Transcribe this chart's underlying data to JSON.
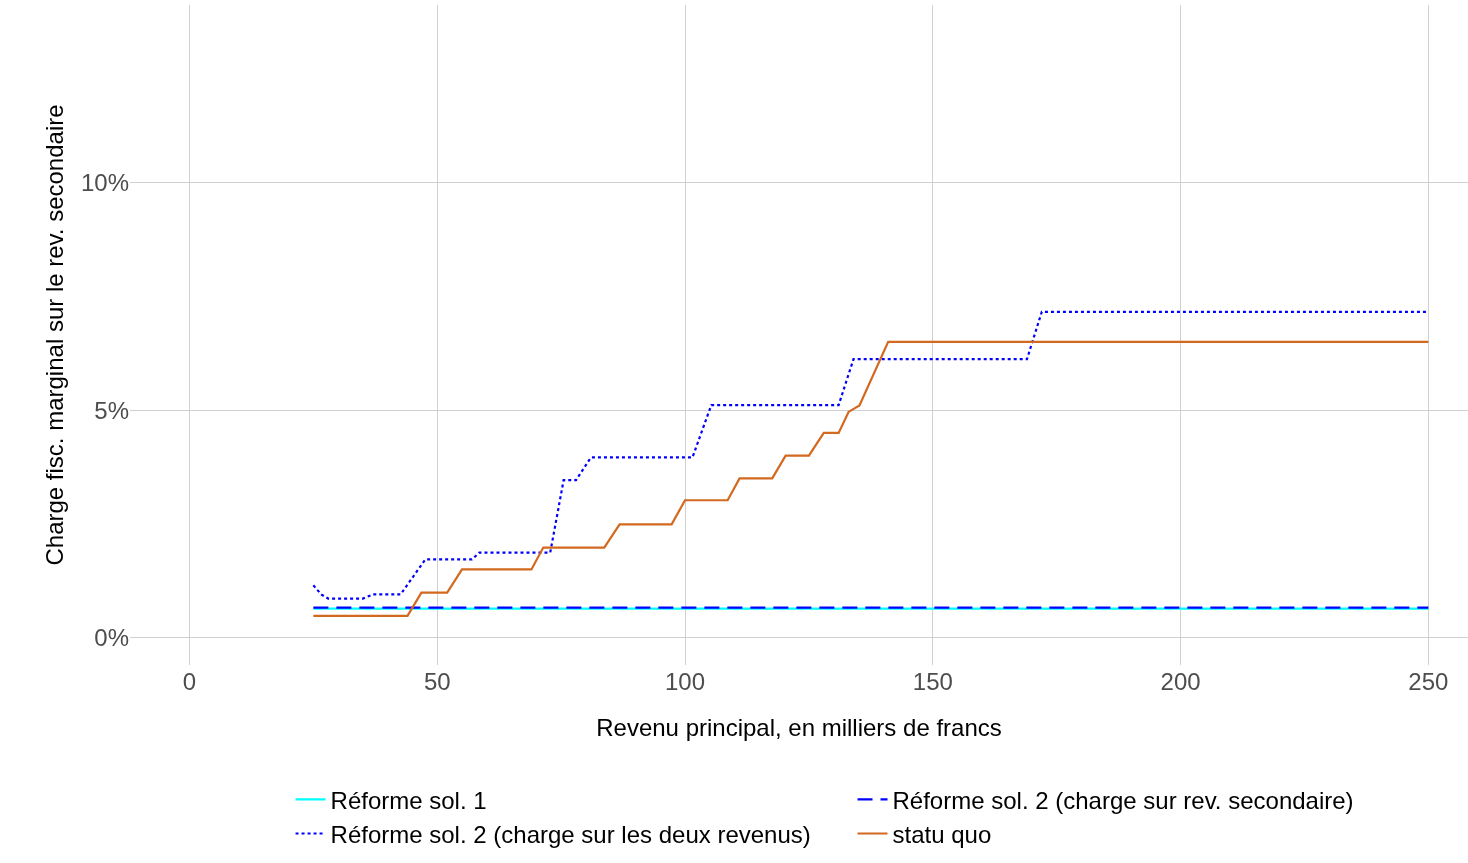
{
  "chart_data": {
    "type": "line",
    "xlabel": "Revenu principal, en milliers de francs",
    "ylabel": "Charge fisc. marginal sur le rev. secondaire",
    "xlim": [
      -12,
      258
    ],
    "xticks": [
      0,
      50,
      100,
      150,
      200,
      250
    ],
    "ylim": [
      -0.6,
      13.9
    ],
    "yticks": [
      {
        "value": 0,
        "label": "0%"
      },
      {
        "value": 5,
        "label": "5%"
      },
      {
        "value": 10,
        "label": "10%"
      }
    ],
    "grid": true,
    "legend": "bottom",
    "marker": "none",
    "series": [
      {
        "name": "Réforme sol. 1",
        "color": "#00ffff",
        "line_style": "solid",
        "x": [
          25,
          250
        ],
        "values": [
          0.64,
          0.64
        ]
      },
      {
        "name": "Réforme sol. 2 (charge sur rev. secondaire)",
        "color": "#0000ff",
        "line_style": "dashed",
        "x": [
          25,
          250
        ],
        "values": [
          0.66,
          0.66
        ]
      },
      {
        "name": "Réforme sol. 2 (charge sur les deux revenus)",
        "color": "#0000ff",
        "line_style": "dotted",
        "x": [
          25,
          26.6,
          28,
          35,
          37,
          42.6,
          47.6,
          57,
          58.5,
          72.8,
          75.5,
          78,
          81,
          101.5,
          105.3,
          131,
          134,
          169,
          172,
          250
        ],
        "values": [
          1.15,
          0.95,
          0.86,
          0.86,
          0.95,
          0.95,
          1.72,
          1.72,
          1.87,
          1.87,
          3.46,
          3.46,
          3.96,
          3.96,
          5.11,
          5.11,
          6.12,
          6.12,
          7.16,
          7.16
        ]
      },
      {
        "name": "statu quo",
        "color": "#d2691e",
        "line_style": "solid",
        "x": [
          25,
          44,
          46.8,
          52,
          55,
          69,
          71.4,
          83.7,
          86.8,
          97.3,
          100,
          108.6,
          111,
          117.6,
          120.3,
          125,
          128,
          131,
          133,
          135.2,
          141,
          250
        ],
        "values": [
          0.48,
          0.48,
          0.99,
          0.99,
          1.5,
          1.5,
          1.98,
          1.98,
          2.49,
          2.49,
          3.02,
          3.02,
          3.5,
          3.5,
          4.0,
          4.0,
          4.5,
          4.5,
          4.96,
          5.1,
          6.5,
          6.5
        ]
      }
    ]
  }
}
